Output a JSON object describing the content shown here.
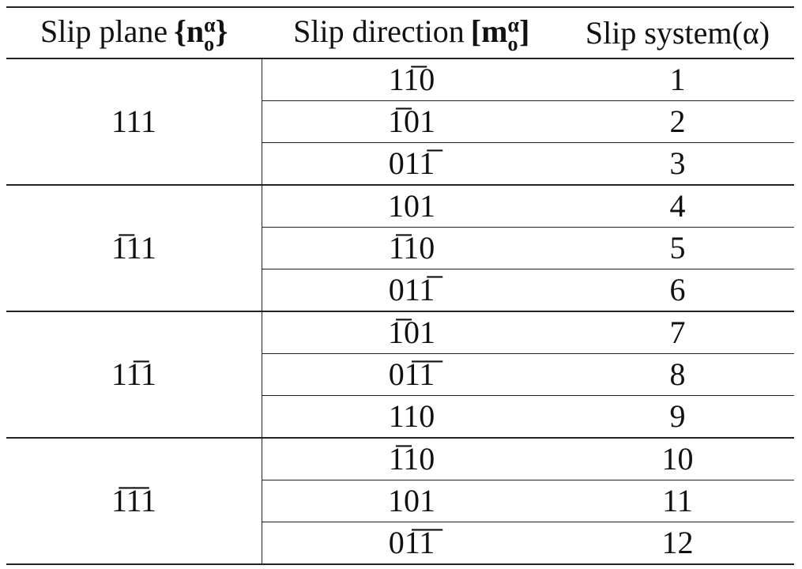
{
  "table": {
    "header": [
      {
        "label": "Slip plane",
        "open": "{",
        "symbol": "n",
        "sub": "o",
        "sup": "α",
        "close": "}"
      },
      {
        "label": "Slip direction",
        "open": "[",
        "symbol": "m",
        "sub": "o",
        "sup": "α",
        "close": "]"
      },
      {
        "label": "Slip system(α)"
      }
    ],
    "groups": [
      {
        "plane": "111",
        "rows": [
          {
            "direction": "11̅0",
            "system": 1
          },
          {
            "direction": "1̅01",
            "system": 2
          },
          {
            "direction": "011̅",
            "system": 3
          }
        ]
      },
      {
        "plane": "1̅11",
        "rows": [
          {
            "direction": "101",
            "system": 4
          },
          {
            "direction": "1̅10",
            "system": 5
          },
          {
            "direction": "011̅",
            "system": 6
          }
        ]
      },
      {
        "plane": "11̅1",
        "rows": [
          {
            "direction": "1̅01",
            "system": 7
          },
          {
            "direction": "01̅1̅",
            "system": 8
          },
          {
            "direction": "110",
            "system": 9
          }
        ]
      },
      {
        "plane": "1̅1̅1",
        "rows": [
          {
            "direction": "1̅10",
            "system": 10
          },
          {
            "direction": "101",
            "system": 11
          },
          {
            "direction": "01̅1̅",
            "system": 12
          }
        ]
      }
    ]
  }
}
